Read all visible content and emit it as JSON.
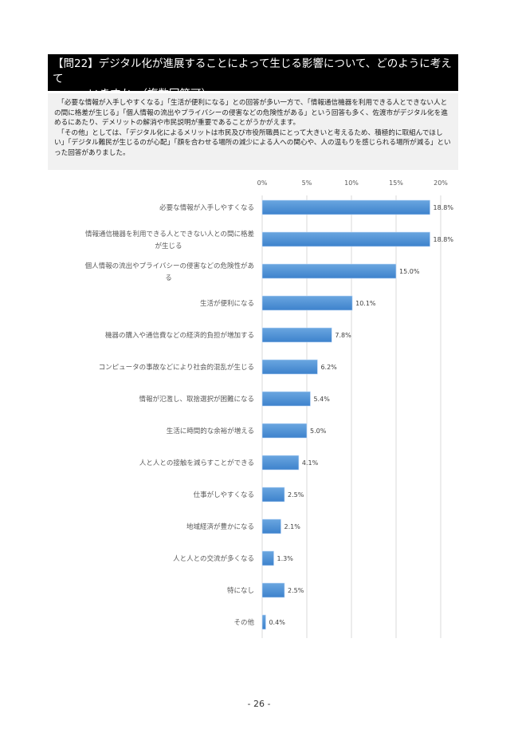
{
  "question": {
    "line1": "【問22】デジタル化が進展することによって生じる影響について、どのように考えて",
    "line2": "いますか。（複数回答可）"
  },
  "summary": [
    "「必要な情報が入手しやすくなる」「生活が便利になる」との回答が多い一方で、「情報通信機器を利用できる人とできない人との間に格差が生じる」「個人情報の流出やプライバシーの侵害などの危険性がある」という回答も多く、佐渡市がデジタル化を進めるにあたり、デメリットの解消や市民説明が重要であることがうかがえます。",
    "「その他」としては、「デジタル化によるメリットは市民及び市役所職員にとって大きいと考えるため、積極的に取組んでほしい」「デジタル難民が生じるのが心配」「顔を合わせる場所の減少による人への関心や、人の温もりを感じられる場所が減る」といった回答がありました。"
  ],
  "chart_data": {
    "type": "bar",
    "orientation": "horizontal",
    "categories": [
      [
        "必要な情報が入手しやすくなる"
      ],
      [
        "情報通信機器を利用できる人とできない人との間に格差",
        "が生じる"
      ],
      [
        "個人情報の流出やプライバシーの侵害などの危険性があ",
        "る"
      ],
      [
        "生活が便利になる"
      ],
      [
        "機器の購入や通信費などの経済的負担が増加する"
      ],
      [
        "コンピュータの事故などにより社会的混乱が生じる"
      ],
      [
        "情報が氾濫し、取捨選択が困難になる"
      ],
      [
        "生活に時間的な余裕が増える"
      ],
      [
        "人と人との接触を減らすことができる"
      ],
      [
        "仕事がしやすくなる"
      ],
      [
        "地域経済が豊かになる"
      ],
      [
        "人と人との交流が多くなる"
      ],
      [
        "特になし"
      ],
      [
        "その他"
      ]
    ],
    "values": [
      18.8,
      18.8,
      15.0,
      10.1,
      7.8,
      6.2,
      5.4,
      5.0,
      4.1,
      2.5,
      2.1,
      1.3,
      2.5,
      0.4
    ],
    "value_labels": [
      "18.8%",
      "18.8%",
      "15.0%",
      "10.1%",
      "7.8%",
      "6.2%",
      "5.4%",
      "5.0%",
      "4.1%",
      "2.5%",
      "2.1%",
      "1.3%",
      "2.5%",
      "0.4%"
    ],
    "xlim": [
      0,
      20
    ],
    "ticks": [
      "0%",
      "5%",
      "10%",
      "15%",
      "20%"
    ],
    "grid": true,
    "bar_color": "#4a8fd4"
  },
  "page_number": "- 26 -"
}
